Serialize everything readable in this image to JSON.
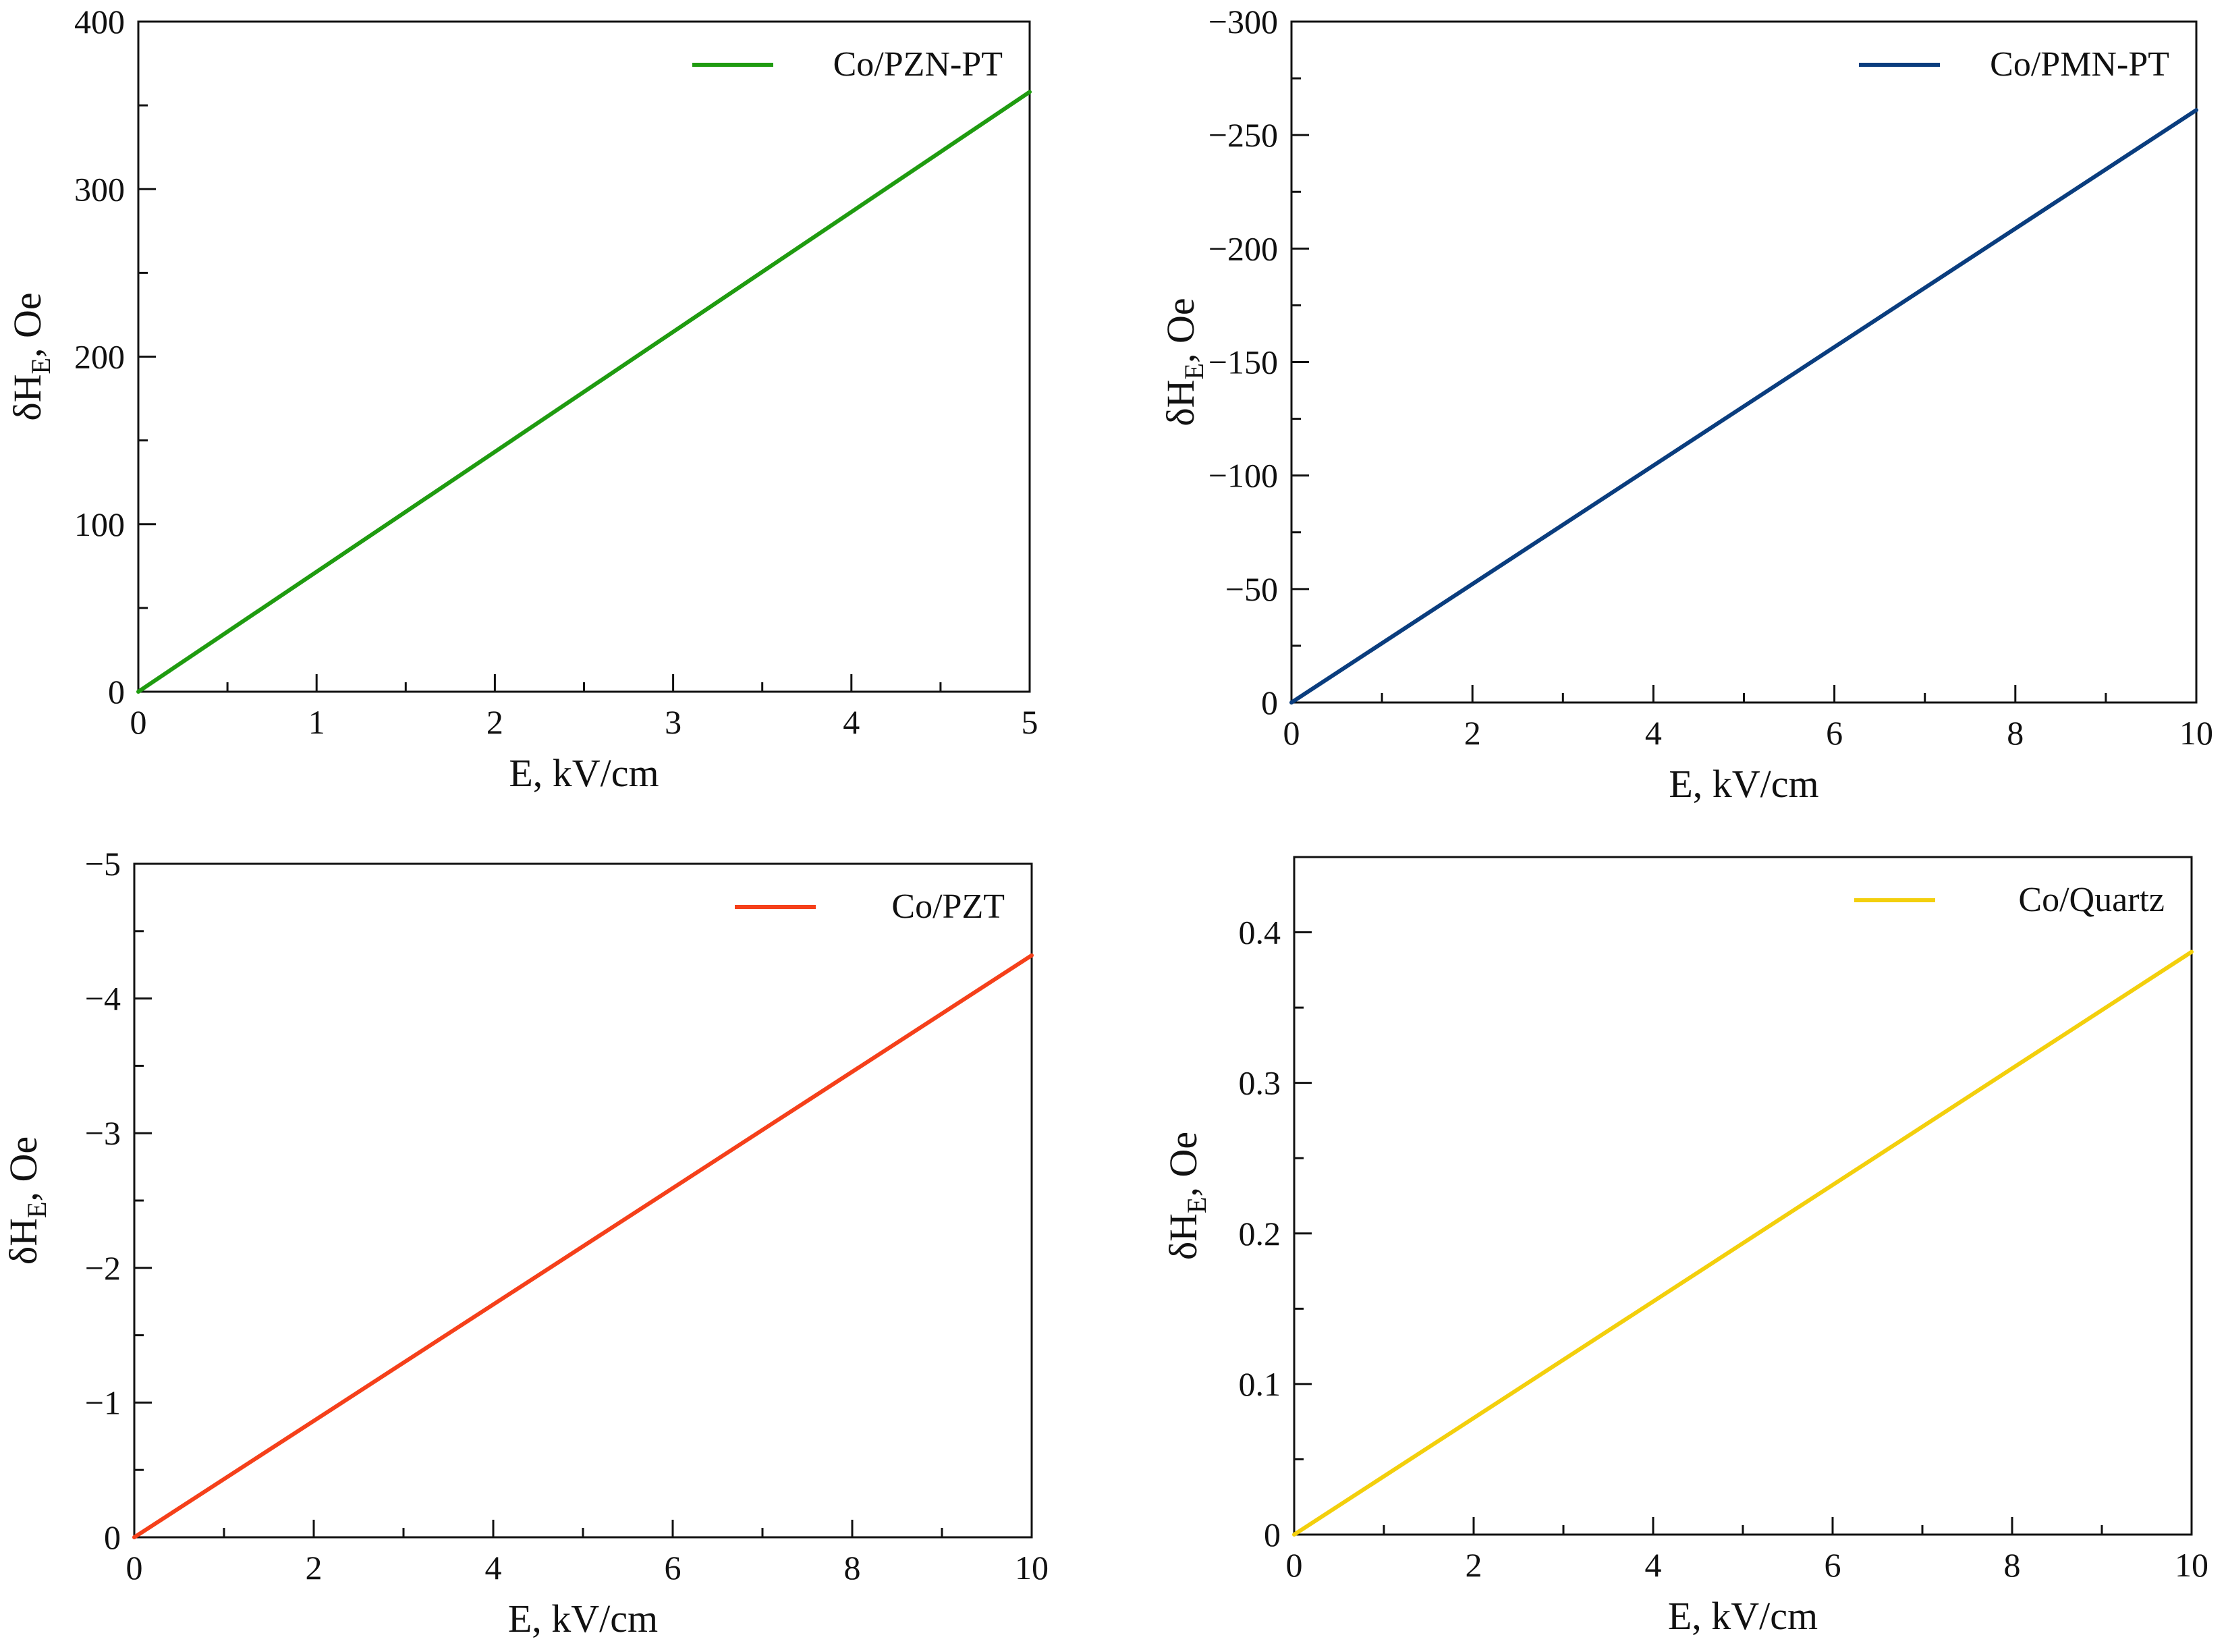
{
  "chart_data": [
    {
      "type": "line",
      "xlabel": "E, kV/cm",
      "ylabel_main": "δH",
      "ylabel_sub": "E",
      "ylabel_tail": ", Oe",
      "xlim": [
        0,
        5
      ],
      "ylim": [
        0,
        400
      ],
      "y_inverted": false,
      "xticks": [
        0,
        1,
        2,
        3,
        4,
        5
      ],
      "xtick_labels": [
        "0",
        "1",
        "2",
        "3",
        "4",
        "5"
      ],
      "yticks": [
        0,
        100,
        200,
        300,
        400
      ],
      "ytick_labels": [
        "0",
        "100",
        "200",
        "300",
        "400"
      ],
      "legend_position": "top-right",
      "series": [
        {
          "name": "Co/PZN-PT",
          "color": "#1f9b10",
          "x": [
            0,
            5
          ],
          "y": [
            0,
            358
          ]
        }
      ]
    },
    {
      "type": "line",
      "xlabel": "E, kV/cm",
      "ylabel_main": "δH",
      "ylabel_sub": "E",
      "ylabel_tail": ", Oe",
      "xlim": [
        0,
        10
      ],
      "ylim": [
        0,
        -300
      ],
      "y_inverted": true,
      "xticks": [
        0,
        2,
        4,
        6,
        8,
        10
      ],
      "xtick_labels": [
        "0",
        "2",
        "4",
        "6",
        "8",
        "10"
      ],
      "yticks": [
        0,
        -50,
        -100,
        -150,
        -200,
        -250,
        -300
      ],
      "ytick_labels": [
        "0",
        "−50",
        "−100",
        "−150",
        "−200",
        "−250",
        "−300"
      ],
      "legend_position": "top-right",
      "series": [
        {
          "name": "Co/PMN-PT",
          "color": "#0a3d7e",
          "x": [
            0,
            10
          ],
          "y": [
            0,
            -261
          ]
        }
      ]
    },
    {
      "type": "line",
      "xlabel": "E, kV/cm",
      "ylabel_main": "δH",
      "ylabel_sub": "E",
      "ylabel_tail": ", Oe",
      "xlim": [
        0,
        10
      ],
      "ylim": [
        0,
        -5
      ],
      "y_inverted": true,
      "xticks": [
        0,
        2,
        4,
        6,
        8,
        10
      ],
      "xtick_labels": [
        "0",
        "2",
        "4",
        "6",
        "8",
        "10"
      ],
      "yticks": [
        0,
        -1,
        -2,
        -3,
        -4,
        -5
      ],
      "ytick_labels": [
        "0",
        "−1",
        "−2",
        "−3",
        "−4",
        "−5"
      ],
      "legend_position": "top-right",
      "series": [
        {
          "name": "Co/PZT",
          "color": "#f5401a",
          "x": [
            0,
            10
          ],
          "y": [
            0,
            -4.32
          ]
        }
      ]
    },
    {
      "type": "line",
      "xlabel": "E, kV/cm",
      "ylabel_main": "δH",
      "ylabel_sub": "E",
      "ylabel_tail": ", Oe",
      "xlim": [
        0,
        10
      ],
      "ylim": [
        0,
        0.45
      ],
      "y_inverted": false,
      "xticks": [
        0,
        2,
        4,
        6,
        8,
        10
      ],
      "xtick_labels": [
        "0",
        "2",
        "4",
        "6",
        "8",
        "10"
      ],
      "yticks": [
        0,
        0.1,
        0.2,
        0.3,
        0.4
      ],
      "ytick_labels": [
        "0",
        "0.1",
        "0.2",
        "0.3",
        "0.4"
      ],
      "legend_position": "top-right",
      "series": [
        {
          "name": "Co/Quartz",
          "color": "#f3cf0c",
          "x": [
            0,
            10
          ],
          "y": [
            0,
            0.387
          ]
        }
      ]
    }
  ]
}
